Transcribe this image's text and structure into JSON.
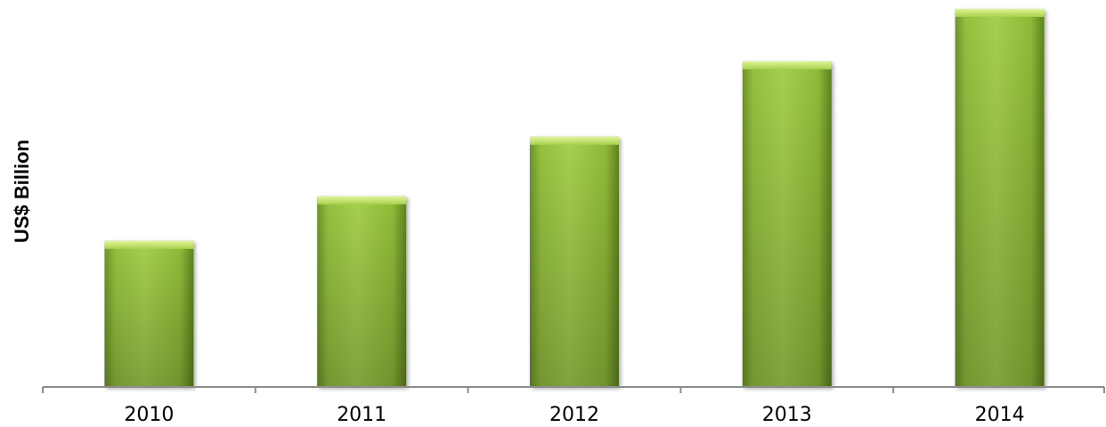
{
  "chart_data": {
    "type": "bar",
    "categories": [
      "2010",
      "2011",
      "2012",
      "2013",
      "2014"
    ],
    "values": [
      38.7,
      50.5,
      66.3,
      86.3,
      100.2
    ],
    "ylabel": "US$ Billion",
    "xlabel": "",
    "ylim": [
      0,
      102
    ],
    "grid": false,
    "bar_color": "#93c23d",
    "bar_top_color": "#c8e86c",
    "axis_color": "#8c8c8c"
  }
}
